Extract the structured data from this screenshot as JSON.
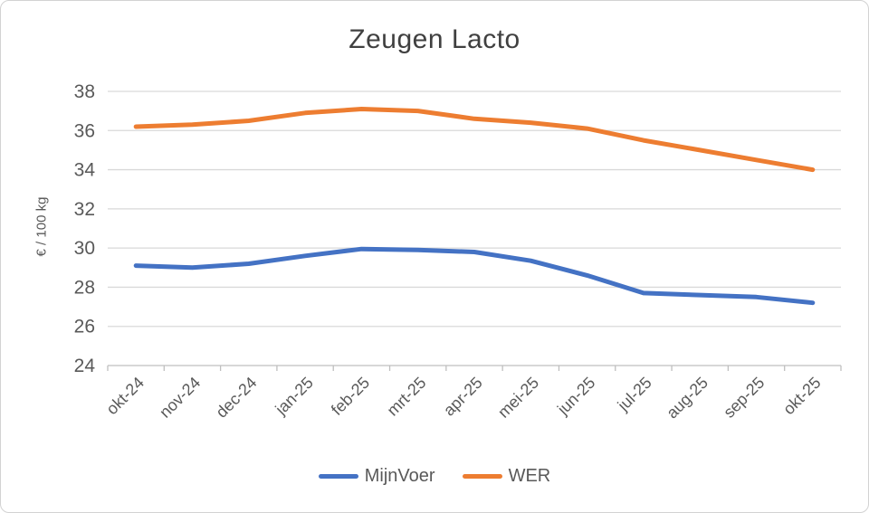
{
  "chart_data": {
    "type": "line",
    "title": "Zeugen Lacto",
    "ylabel": "€ / 100 kg",
    "categories": [
      "okt-24",
      "nov-24",
      "dec-24",
      "jan-25",
      "feb-25",
      "mrt-25",
      "apr-25",
      "mei-25",
      "jun-25",
      "jul-25",
      "aug-25",
      "sep-25",
      "okt-25"
    ],
    "series": [
      {
        "name": "MijnVoer",
        "color": "#4472C4",
        "values": [
          29.1,
          29.0,
          29.2,
          29.6,
          29.95,
          29.9,
          29.8,
          29.35,
          28.6,
          27.7,
          27.6,
          27.5,
          27.2
        ]
      },
      {
        "name": "WER",
        "color": "#ED7D31",
        "values": [
          36.2,
          36.3,
          36.5,
          36.9,
          37.1,
          37.0,
          36.6,
          36.4,
          36.1,
          35.5,
          35.0,
          34.5,
          34.0
        ]
      }
    ],
    "ylim": [
      24,
      38
    ],
    "ytick_step": 2,
    "grid": true,
    "legend_position": "bottom",
    "colors": {
      "gridline": "#d9d9d9",
      "axis": "#bfbfbf",
      "tick_label": "#595959",
      "title": "#404040"
    }
  }
}
